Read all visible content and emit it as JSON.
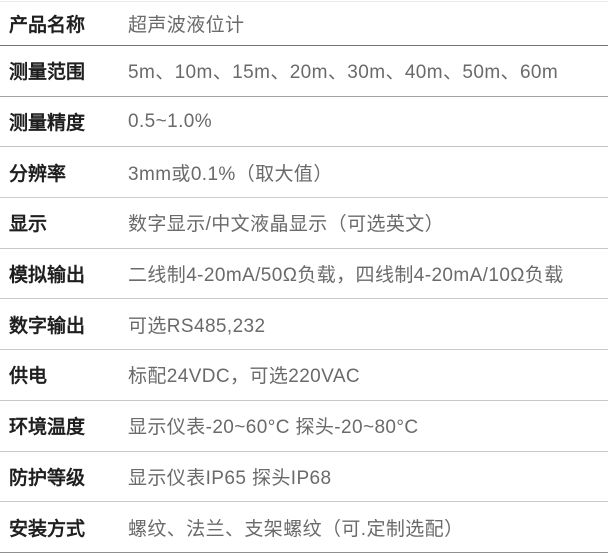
{
  "page": {
    "type": "product-specification-table",
    "product_name": "超声波液位计"
  },
  "colors": {
    "background": "#ffffff",
    "label_text": "#1f1f1f",
    "value_text": "#6a6a6a",
    "divider": "#c9c9c9",
    "header_divider": "#757575",
    "bottom_border": "#8f8f8f"
  },
  "table": {
    "rows": [
      {
        "label": "产品名称",
        "value": "超声波液位计"
      },
      {
        "label": "测量范围",
        "value": "5m、10m、15m、20m、30m、40m、50m、60m"
      },
      {
        "label": "测量精度",
        "value": "0.5~1.0%"
      },
      {
        "label": "分辨率",
        "value": "3mm或0.1%（取大值）"
      },
      {
        "label": "显示",
        "value": "数字显示/中文液晶显示（可选英文）"
      },
      {
        "label": "模拟输出",
        "value": "二线制4-20mA/50Ω负载，四线制4-20mA/10Ω负载"
      },
      {
        "label": "数字输出",
        "value": "可选RS485,232"
      },
      {
        "label": "供电",
        "value": "标配24VDC，可选220VAC"
      },
      {
        "label": "环境温度",
        "value": "显示仪表-20~60°C 探头-20~80°C"
      },
      {
        "label": "防护等级",
        "value": "显示仪表IP65 探头IP68"
      },
      {
        "label": "安装方式",
        "value": "螺纹、法兰、支架螺纹（可.定制选配）"
      }
    ]
  }
}
